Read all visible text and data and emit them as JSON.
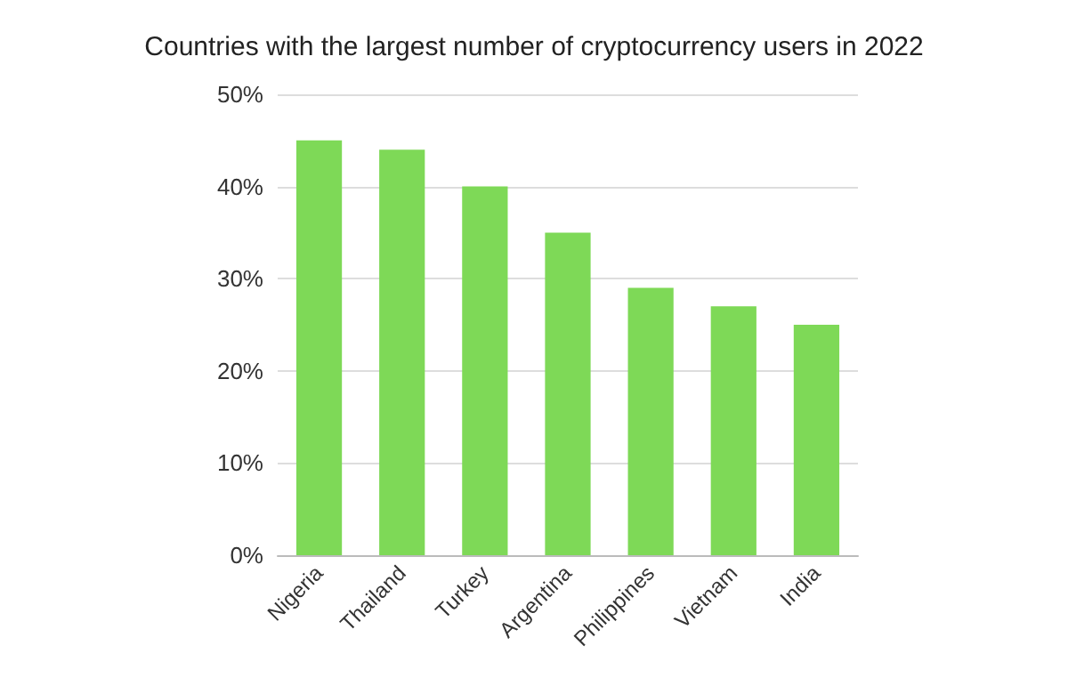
{
  "chart_data": {
    "type": "bar",
    "title": "Countries with the largest number of cryptocurrency users in 2022",
    "categories": [
      "Nigeria",
      "Thailand",
      "Turkey",
      "Argentina",
      "Philippines",
      "Vietnam",
      "India"
    ],
    "values": [
      45,
      44,
      40,
      35,
      29,
      27,
      25
    ],
    "color": "#7ed957",
    "ylim": [
      0,
      50
    ],
    "yticks": [
      {
        "value": 0,
        "label": "0%"
      },
      {
        "value": 10,
        "label": "10%"
      },
      {
        "value": 20,
        "label": "20%"
      },
      {
        "value": 30,
        "label": "30%"
      },
      {
        "value": 40,
        "label": "40%"
      },
      {
        "value": 50,
        "label": "50%"
      }
    ],
    "grid": "y"
  }
}
